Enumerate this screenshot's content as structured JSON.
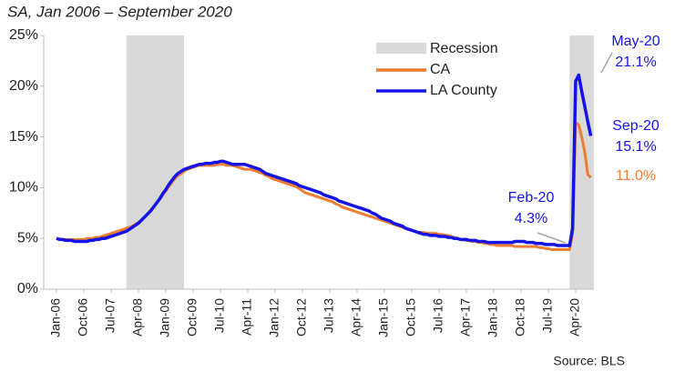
{
  "chart_data": {
    "type": "line",
    "subtitle": "SA, Jan 2006 – September 2020",
    "source": "Source: BLS",
    "categories": [
      "Jan-06",
      null,
      null,
      null,
      null,
      null,
      null,
      null,
      null,
      "Oct-06",
      null,
      null,
      null,
      null,
      null,
      null,
      null,
      null,
      "Jul-07",
      null,
      null,
      null,
      null,
      null,
      null,
      null,
      null,
      "Apr-08",
      null,
      null,
      null,
      null,
      null,
      null,
      null,
      null,
      "Jan-09",
      null,
      null,
      null,
      null,
      null,
      null,
      null,
      null,
      "Oct-09",
      null,
      null,
      null,
      null,
      null,
      null,
      null,
      null,
      "Jul-10",
      null,
      null,
      null,
      null,
      null,
      null,
      null,
      null,
      "Apr-11",
      null,
      null,
      null,
      null,
      null,
      null,
      null,
      null,
      "Jan-12",
      null,
      null,
      null,
      null,
      null,
      null,
      null,
      null,
      "Oct-12",
      null,
      null,
      null,
      null,
      null,
      null,
      null,
      null,
      "Jul-13",
      null,
      null,
      null,
      null,
      null,
      null,
      null,
      null,
      "Apr-14",
      null,
      null,
      null,
      null,
      null,
      null,
      null,
      null,
      "Jan-15",
      null,
      null,
      null,
      null,
      null,
      null,
      null,
      null,
      "Oct-15",
      null,
      null,
      null,
      null,
      null,
      null,
      null,
      null,
      "Jul-16",
      null,
      null,
      null,
      null,
      null,
      null,
      null,
      null,
      "Apr-17",
      null,
      null,
      null,
      null,
      null,
      null,
      null,
      null,
      "Jan-18",
      null,
      null,
      null,
      null,
      null,
      null,
      null,
      null,
      "Oct-18",
      null,
      null,
      null,
      null,
      null,
      null,
      null,
      null,
      "Jul-19",
      null,
      null,
      null,
      null,
      null,
      null,
      null,
      null,
      "Apr-20",
      null,
      null,
      null,
      null,
      null
    ],
    "recession": {
      "name": "Recession",
      "color": "#d9d9d9",
      "periods": [
        [
          23,
          41
        ],
        [
          169,
          176
        ]
      ]
    },
    "series": [
      {
        "name": "CA",
        "color": "#ed7d31",
        "values": [
          5.0,
          4.9,
          4.9,
          4.9,
          4.9,
          4.9,
          4.9,
          4.9,
          4.9,
          4.9,
          5.0,
          5.0,
          5.0,
          5.1,
          5.1,
          5.2,
          5.3,
          5.4,
          5.5,
          5.6,
          5.7,
          5.8,
          5.9,
          6.0,
          6.1,
          6.2,
          6.4,
          6.6,
          6.8,
          7.1,
          7.4,
          7.8,
          8.1,
          8.5,
          8.9,
          9.3,
          9.7,
          10.1,
          10.5,
          10.9,
          11.2,
          11.4,
          11.6,
          11.8,
          11.9,
          12.0,
          12.1,
          12.2,
          12.2,
          12.2,
          12.2,
          12.2,
          12.2,
          12.3,
          12.3,
          12.3,
          12.2,
          12.2,
          12.2,
          12.1,
          12.0,
          11.9,
          11.8,
          11.8,
          11.8,
          11.7,
          11.6,
          11.5,
          11.4,
          11.2,
          11.1,
          10.9,
          10.8,
          10.7,
          10.6,
          10.5,
          10.4,
          10.3,
          10.2,
          10.1,
          9.9,
          9.7,
          9.5,
          9.4,
          9.3,
          9.2,
          9.1,
          9.0,
          8.9,
          8.8,
          8.7,
          8.6,
          8.4,
          8.3,
          8.1,
          8.0,
          7.9,
          7.8,
          7.7,
          7.6,
          7.5,
          7.4,
          7.3,
          7.2,
          7.1,
          7.0,
          6.9,
          6.8,
          6.7,
          6.6,
          6.5,
          6.4,
          6.3,
          6.2,
          6.1,
          6.0,
          5.9,
          5.8,
          5.7,
          5.6,
          5.6,
          5.6,
          5.5,
          5.5,
          5.5,
          5.5,
          5.4,
          5.4,
          5.3,
          5.3,
          5.2,
          5.1,
          5.0,
          4.9,
          4.9,
          4.8,
          4.8,
          4.7,
          4.7,
          4.6,
          4.6,
          4.5,
          4.5,
          4.4,
          4.4,
          4.3,
          4.3,
          4.3,
          4.3,
          4.3,
          4.3,
          4.2,
          4.2,
          4.2,
          4.2,
          4.2,
          4.2,
          4.2,
          4.2,
          4.1,
          4.1,
          4.0,
          4.0,
          3.9,
          3.9,
          3.9,
          3.9,
          3.9,
          3.9,
          3.9,
          5.5,
          16.4,
          16.2,
          15.0,
          13.5,
          11.3,
          11.0
        ],
        "value_labels": [
          null,
          null,
          null,
          null,
          null,
          null,
          null,
          null,
          null,
          null,
          null,
          null,
          null,
          null,
          null,
          null,
          null,
          null,
          null,
          null,
          null,
          null,
          null,
          null,
          null,
          null,
          null,
          null,
          null,
          null,
          null,
          null,
          null,
          null,
          null,
          null,
          null,
          null,
          null,
          null,
          null,
          null,
          null,
          null,
          null,
          null,
          null,
          null,
          null,
          null,
          null,
          null,
          null,
          null,
          null,
          null,
          null,
          null,
          null,
          null,
          null,
          null,
          null,
          null,
          null,
          null,
          null,
          null,
          null,
          null,
          null,
          null,
          null,
          null,
          null,
          null,
          null,
          null,
          null,
          null,
          null,
          null,
          null,
          null,
          null,
          null,
          null,
          null,
          null,
          null,
          null,
          null,
          null,
          null,
          null,
          null,
          null,
          null,
          null,
          null,
          null,
          null,
          null,
          null,
          null,
          null,
          null,
          null,
          null,
          null,
          null,
          null,
          null,
          null,
          null,
          null,
          null,
          null,
          null,
          null,
          null,
          null,
          null,
          null,
          null,
          null,
          null,
          null,
          null,
          null,
          null,
          null,
          null,
          null,
          null,
          null,
          null,
          null,
          null,
          null,
          null,
          null,
          null,
          null,
          null,
          null,
          null,
          null,
          null,
          null,
          null,
          null,
          null,
          null,
          null,
          null,
          null,
          null,
          null,
          null,
          null,
          null,
          null,
          null,
          null,
          null,
          null,
          null,
          null,
          null,
          null,
          null,
          null,
          null,
          null,
          null,
          "11.0%"
        ]
      },
      {
        "name": "LA County",
        "color": "#1414e6",
        "values": [
          5.0,
          4.9,
          4.9,
          4.8,
          4.8,
          4.8,
          4.7,
          4.7,
          4.7,
          4.7,
          4.7,
          4.8,
          4.8,
          4.9,
          4.9,
          5.0,
          5.0,
          5.1,
          5.2,
          5.3,
          5.4,
          5.5,
          5.6,
          5.7,
          5.9,
          6.1,
          6.3,
          6.5,
          6.8,
          7.1,
          7.4,
          7.7,
          8.1,
          8.5,
          8.9,
          9.4,
          9.8,
          10.3,
          10.7,
          11.1,
          11.4,
          11.6,
          11.8,
          11.9,
          12.0,
          12.1,
          12.2,
          12.3,
          12.3,
          12.4,
          12.4,
          12.4,
          12.5,
          12.5,
          12.6,
          12.6,
          12.5,
          12.4,
          12.3,
          12.3,
          12.3,
          12.3,
          12.3,
          12.2,
          12.1,
          12.0,
          11.9,
          11.8,
          11.6,
          11.4,
          11.3,
          11.2,
          11.1,
          11.0,
          10.9,
          10.8,
          10.7,
          10.6,
          10.5,
          10.4,
          10.2,
          10.1,
          10.0,
          9.9,
          9.8,
          9.7,
          9.6,
          9.5,
          9.3,
          9.2,
          9.1,
          9.0,
          8.9,
          8.7,
          8.6,
          8.5,
          8.4,
          8.3,
          8.2,
          8.1,
          8.0,
          7.9,
          7.8,
          7.7,
          7.5,
          7.4,
          7.2,
          7.0,
          6.9,
          6.8,
          6.7,
          6.5,
          6.4,
          6.3,
          6.2,
          6.0,
          5.9,
          5.8,
          5.7,
          5.6,
          5.5,
          5.4,
          5.4,
          5.3,
          5.3,
          5.3,
          5.2,
          5.2,
          5.2,
          5.1,
          5.1,
          5.0,
          5.0,
          4.9,
          4.9,
          4.9,
          4.8,
          4.8,
          4.8,
          4.7,
          4.7,
          4.7,
          4.6,
          4.6,
          4.6,
          4.6,
          4.6,
          4.6,
          4.6,
          4.6,
          4.6,
          4.7,
          4.7,
          4.7,
          4.7,
          4.6,
          4.6,
          4.6,
          4.5,
          4.5,
          4.5,
          4.4,
          4.4,
          4.4,
          4.4,
          4.3,
          4.3,
          4.3,
          4.3,
          4.3,
          6.0,
          20.5,
          21.1,
          19.5,
          18.0,
          16.5,
          15.1
        ],
        "value_labels": [
          null,
          null,
          null,
          null,
          null,
          null,
          null,
          null,
          null,
          null,
          null,
          null,
          null,
          null,
          null,
          null,
          null,
          null,
          null,
          null,
          null,
          null,
          null,
          null,
          null,
          null,
          null,
          null,
          null,
          null,
          null,
          null,
          null,
          null,
          null,
          null,
          null,
          null,
          null,
          null,
          null,
          null,
          null,
          null,
          null,
          null,
          null,
          null,
          null,
          null,
          null,
          null,
          null,
          null,
          null,
          null,
          null,
          null,
          null,
          null,
          null,
          null,
          null,
          null,
          null,
          null,
          null,
          null,
          null,
          null,
          null,
          null,
          null,
          null,
          null,
          null,
          null,
          null,
          null,
          null,
          null,
          null,
          null,
          null,
          null,
          null,
          null,
          null,
          null,
          null,
          null,
          null,
          null,
          null,
          null,
          null,
          null,
          null,
          null,
          null,
          null,
          null,
          null,
          null,
          null,
          null,
          null,
          null,
          null,
          null,
          null,
          null,
          null,
          null,
          null,
          null,
          null,
          null,
          null,
          null,
          null,
          null,
          null,
          null,
          null,
          null,
          null,
          null,
          null,
          null,
          null,
          null,
          null,
          null,
          null,
          null,
          null,
          null,
          null,
          null,
          null,
          null,
          null,
          null,
          null,
          null,
          null,
          null,
          null,
          null,
          null,
          null,
          null,
          null,
          null,
          null,
          null,
          null,
          null,
          null,
          null,
          null,
          null,
          null,
          null,
          null,
          null,
          null,
          null,
          "4.3%",
          null,
          null,
          "21.1%",
          null,
          null,
          null,
          "15.1%"
        ]
      }
    ],
    "annotations": [
      "Feb-20",
      "May-20",
      "Sep-20"
    ],
    "ylim": [
      0,
      25
    ],
    "yticks": [
      {
        "value": 0,
        "label": "0%"
      },
      {
        "value": 5,
        "label": "5%"
      },
      {
        "value": 10,
        "label": "10%"
      },
      {
        "value": 15,
        "label": "15%"
      },
      {
        "value": 20,
        "label": "20%"
      },
      {
        "value": 25,
        "label": "25%"
      }
    ],
    "grid": false,
    "legend": "upper right"
  }
}
